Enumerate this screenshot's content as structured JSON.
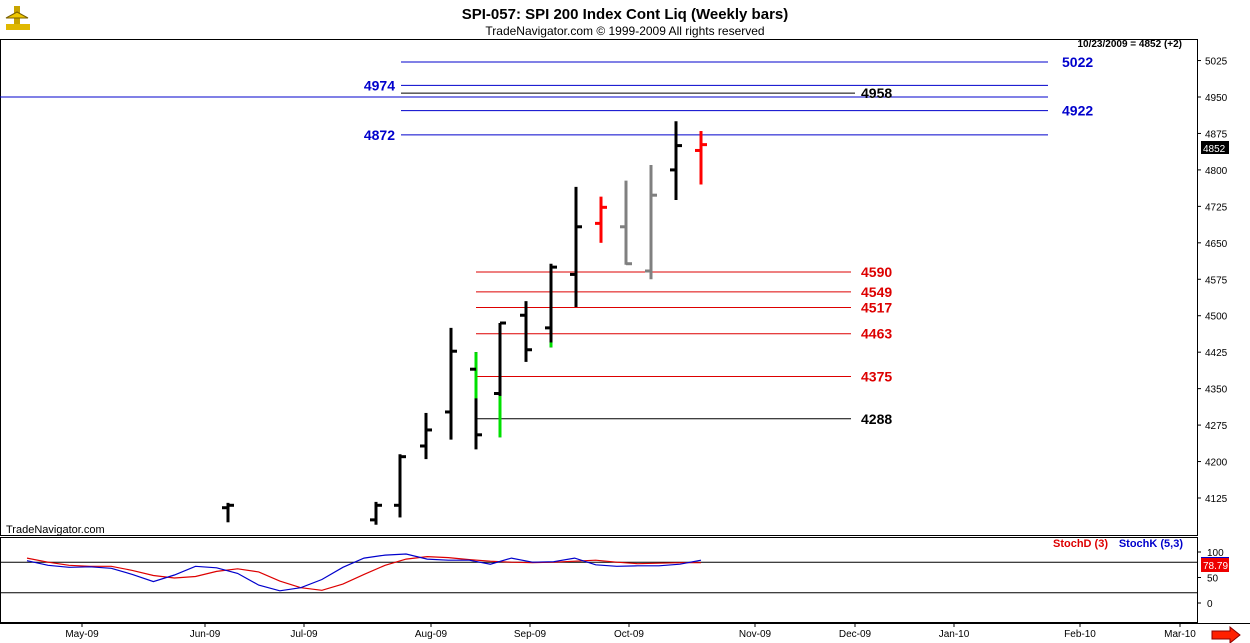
{
  "title": "SPI-057:  SPI 200 Index Cont Liq  (Weekly bars)",
  "copyright": "TradeNavigator.com © 1999-2009 All rights reserved",
  "watermark": "TradeNavigator.com",
  "last_info": "10/23/2009 = 4852 (+2)",
  "last_price_tag": "4852",
  "stoch_last_tag": "78.79",
  "colors": {
    "bar_up": "#000000",
    "bar_down_red": "#ff0000",
    "bar_gray": "#808080",
    "bar_green": "#00e000",
    "level_blue": "#0000cc",
    "level_red": "#dd0000",
    "level_black": "#000000",
    "stochD": "#dd0000",
    "stochK": "#0000cc"
  },
  "chart_data": [
    {
      "type": "bar",
      "subtype": "ohlc",
      "ylim": [
        4075,
        5075
      ],
      "y_ticks": [
        4125,
        4200,
        4275,
        4350,
        4425,
        4500,
        4575,
        4650,
        4725,
        4800,
        4875,
        4950,
        5025
      ],
      "x_labels": [
        "May-09",
        "Jun-09",
        "Jul-09",
        "Aug-09",
        "Sep-09",
        "Oct-09",
        "Nov-09",
        "Dec-09",
        "Jan-10",
        "Feb-10",
        "Mar-10"
      ],
      "bars": [
        {
          "o": 4105,
          "h": 4115,
          "l": 4075,
          "c": 4110,
          "color": "black"
        },
        {
          "o": 4080,
          "h": 4117,
          "l": 4070,
          "c": 4110,
          "color": "black"
        },
        {
          "o": 4110,
          "h": 4215,
          "l": 4085,
          "c": 4210,
          "color": "black"
        },
        {
          "o": 4232,
          "h": 4300,
          "l": 4205,
          "c": 4265,
          "color": "black"
        },
        {
          "o": 4302,
          "h": 4475,
          "l": 4245,
          "c": 4427,
          "color": "black"
        },
        {
          "o": 4390,
          "h": 4425,
          "l": 4225,
          "c": 4255,
          "color": "black",
          "green_lo": 4330,
          "green_hi": 4425
        },
        {
          "o": 4340,
          "h": 4485,
          "l": 4250,
          "c": 4485,
          "color": "black",
          "green_lo": 4250,
          "green_hi": 4335
        },
        {
          "o": 4501,
          "h": 4530,
          "l": 4405,
          "c": 4430,
          "color": "black"
        },
        {
          "o": 4475,
          "h": 4607,
          "l": 4435,
          "c": 4600,
          "color": "black",
          "green_lo": 4435,
          "green_hi": 4445
        },
        {
          "o": 4585,
          "h": 4765,
          "l": 4518,
          "c": 4683,
          "color": "black"
        },
        {
          "o": 4690,
          "h": 4745,
          "l": 4650,
          "c": 4723,
          "color": "red"
        },
        {
          "o": 4683,
          "h": 4778,
          "l": 4605,
          "c": 4607,
          "color": "gray"
        },
        {
          "o": 4592,
          "h": 4810,
          "l": 4575,
          "c": 4748,
          "color": "gray"
        },
        {
          "o": 4800,
          "h": 4900,
          "l": 4738,
          "c": 4850,
          "color": "black"
        },
        {
          "o": 4840,
          "h": 4880,
          "l": 4770,
          "c": 4852,
          "color": "red"
        }
      ],
      "levels": [
        {
          "value": 5022,
          "label": "5022",
          "color": "blue"
        },
        {
          "value": 4974,
          "label": "4974",
          "color": "blue"
        },
        {
          "value": 4958,
          "label": "4958",
          "color": "black"
        },
        {
          "value": 4922,
          "label": "4922",
          "color": "blue"
        },
        {
          "value": 4872,
          "label": "4872",
          "color": "blue"
        },
        {
          "value": 4590,
          "label": "4590",
          "color": "red"
        },
        {
          "value": 4549,
          "label": "4549",
          "color": "red"
        },
        {
          "value": 4517,
          "label": "4517",
          "color": "red"
        },
        {
          "value": 4463,
          "label": "4463",
          "color": "red"
        },
        {
          "value": 4375,
          "label": "4375",
          "color": "red"
        },
        {
          "value": 4288,
          "label": "4288",
          "color": "black"
        }
      ]
    },
    {
      "type": "line",
      "ylim": [
        -10,
        110
      ],
      "y_ticks": [
        0,
        50,
        100
      ],
      "legend": [
        "StochD (3)",
        "StochK (5,3)"
      ],
      "series": [
        {
          "name": "StochD (3)",
          "values": [
            88,
            80,
            74,
            72,
            72,
            64,
            54,
            49,
            52,
            62,
            67,
            61,
            43,
            30,
            25,
            37,
            56,
            74,
            86,
            91,
            89,
            85,
            82,
            80,
            79,
            80,
            82,
            84,
            80,
            77,
            78,
            79,
            79
          ]
        },
        {
          "name": "StochK (5,3)",
          "values": [
            83,
            74,
            70,
            71,
            68,
            56,
            42,
            55,
            72,
            69,
            58,
            35,
            24,
            30,
            46,
            70,
            88,
            94,
            96,
            86,
            84,
            84,
            76,
            88,
            80,
            81,
            88,
            75,
            72,
            73,
            73,
            76,
            84
          ]
        }
      ]
    }
  ]
}
